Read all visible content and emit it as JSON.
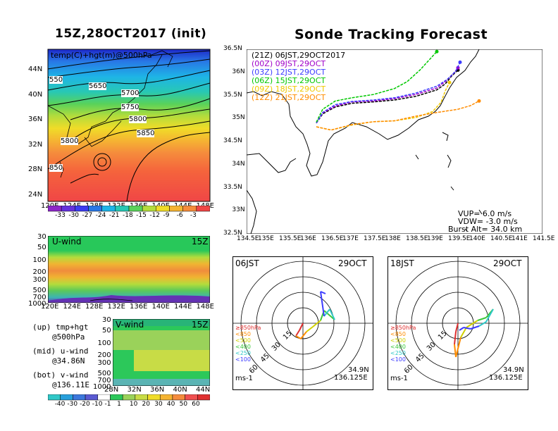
{
  "titles": {
    "left": "15Z,28OCT2017 (init)",
    "right": "Sonde Tracking Forecast"
  },
  "map500": {
    "label": "temp(C)+hgt(m)@500hPa",
    "lat_ticks": [
      "44N",
      "40N",
      "36N",
      "32N",
      "28N",
      "24N"
    ],
    "lon_ticks": [
      "120E",
      "124E",
      "128E",
      "132E",
      "136E",
      "140E",
      "144E",
      "148E"
    ],
    "contours": [
      "550",
      "5650",
      "5700",
      "5750",
      "5800",
      "5850",
      "5800",
      "850"
    ],
    "colorbar": [
      "-33",
      "-30",
      "-27",
      "-24",
      "-21",
      "-18",
      "-15",
      "-12",
      "-9",
      "-6",
      "-3"
    ]
  },
  "uwind": {
    "label": "U-wind",
    "time": "15Z",
    "p_ticks": [
      "30",
      "50",
      "100",
      "200",
      "300",
      "500",
      "700",
      "1000"
    ],
    "lon_ticks": [
      "120E",
      "124E",
      "128E",
      "132E",
      "136E",
      "140E",
      "144E",
      "148E"
    ]
  },
  "vwind": {
    "label": "V-wind",
    "time": "15Z",
    "p_ticks": [
      "30",
      "50",
      "100",
      "200",
      "300",
      "500",
      "700",
      "1000"
    ],
    "lat_ticks": [
      "28N",
      "32N",
      "36N",
      "40N",
      "44N"
    ],
    "colorbar": [
      "-40",
      "-30",
      "-20",
      "-10",
      "-1",
      "1",
      "10",
      "20",
      "30",
      "40",
      "50",
      "60"
    ]
  },
  "notes": [
    {
      "a": "(up) tmp+hgt",
      "b": "@500hPa"
    },
    {
      "a": "(mid) u-wind",
      "b": "@34.86N"
    },
    {
      "a": "(bot) v-wind",
      "b": "@136.11E"
    }
  ],
  "tracking": {
    "legend": [
      {
        "text": "(21Z) 06JST,29OCT2017",
        "color": "#000000"
      },
      {
        "text": "(00Z) 09JST,29OCT",
        "color": "#a000c8"
      },
      {
        "text": "(03Z) 12JST,29OCT",
        "color": "#3c3cff"
      },
      {
        "text": "(06Z) 15JST,29OCT",
        "color": "#00c800"
      },
      {
        "text": "(09Z) 18JST,29OCT",
        "color": "#f0c800"
      },
      {
        "text": "(12Z) 21JST,29OCT",
        "color": "#ff8c00"
      }
    ],
    "lat_ticks": [
      "36.5N",
      "36N",
      "35.5N",
      "35N",
      "34.5N",
      "34N",
      "33.5N",
      "33N",
      "32.5N"
    ],
    "lon_ticks": [
      "134.5E",
      "135E",
      "135.5E",
      "136E",
      "136.5E",
      "137E",
      "137.5E",
      "138E",
      "138.5E",
      "139E",
      "139.5E",
      "140E",
      "140.5E",
      "141E",
      "141.5E"
    ],
    "info": [
      "VUP=  6.0 m/s",
      "VDW= -3.0 m/s",
      "Burst Alt= 34.0 km"
    ]
  },
  "chart_data": [
    {
      "type": "line",
      "title": "Sonde Tracking Forecast",
      "xlim": [
        134.5,
        141.5
      ],
      "ylim": [
        32.5,
        36.5
      ],
      "series": [
        {
          "name": "(21Z) 06JST,29OCT2017",
          "color": "#000000",
          "x": [
            136.15,
            136.3,
            136.6,
            137.0,
            137.5,
            138.0,
            138.5,
            139.0,
            139.2,
            139.35,
            139.5
          ],
          "y": [
            34.9,
            35.1,
            35.25,
            35.33,
            35.36,
            35.4,
            35.48,
            35.62,
            35.75,
            35.92,
            36.05
          ]
        },
        {
          "name": "(00Z) 09JST,29OCT",
          "color": "#a000c8",
          "x": [
            136.15,
            136.3,
            136.6,
            137.0,
            137.5,
            138.0,
            138.5,
            139.0,
            139.2,
            139.4,
            139.5
          ],
          "y": [
            34.9,
            35.12,
            35.27,
            35.36,
            35.38,
            35.43,
            35.52,
            35.66,
            35.8,
            35.98,
            36.1
          ]
        },
        {
          "name": "(03Z) 12JST,29OCT",
          "color": "#3c3cff",
          "x": [
            136.15,
            136.3,
            136.6,
            137.0,
            137.5,
            138.0,
            138.5,
            139.0,
            139.25,
            139.45,
            139.55
          ],
          "y": [
            34.9,
            35.13,
            35.3,
            35.37,
            35.4,
            35.45,
            35.55,
            35.7,
            35.85,
            36.03,
            36.22
          ]
        },
        {
          "name": "(06Z) 15JST,29OCT",
          "color": "#00c800",
          "x": [
            136.15,
            136.3,
            136.6,
            137.0,
            137.5,
            138.0,
            138.3,
            138.6,
            138.85,
            139.0
          ],
          "y": [
            34.92,
            35.2,
            35.38,
            35.45,
            35.52,
            35.65,
            35.8,
            36.05,
            36.3,
            36.45
          ]
        },
        {
          "name": "(09Z) 18JST,29OCT",
          "color": "#f0c800",
          "x": [
            136.15,
            136.5,
            137.0,
            137.5,
            138.0,
            138.5,
            138.9,
            139.1,
            139.2,
            139.3
          ],
          "y": [
            34.82,
            34.75,
            34.86,
            34.93,
            34.95,
            35.02,
            35.15,
            35.35,
            35.6,
            35.78
          ]
        },
        {
          "name": "(12Z) 21JST,29OCT",
          "color": "#ff8c00",
          "x": [
            136.15,
            136.5,
            137.0,
            137.5,
            138.0,
            138.5,
            139.0,
            139.5,
            139.8,
            140.0
          ],
          "y": [
            34.82,
            34.75,
            34.87,
            34.93,
            34.95,
            35.05,
            35.13,
            35.2,
            35.28,
            35.38
          ]
        }
      ]
    }
  ],
  "hodo": [
    {
      "time": "06JST",
      "date": "29OCT",
      "lat": "34.9N",
      "lon": "136.125E",
      "unit": "ms-1",
      "rings": [
        "15",
        "30",
        "45",
        "60"
      ],
      "legend": [
        {
          "text": "≥850hPa",
          "color": "#e03030"
        },
        {
          "text": "<850",
          "color": "#ff8c00"
        },
        {
          "text": "<500",
          "color": "#d0d000"
        },
        {
          "text": "<400",
          "color": "#3cc83c"
        },
        {
          "text": "<250",
          "color": "#30c8c8"
        },
        {
          "text": "<100",
          "color": "#3c3cff"
        }
      ]
    },
    {
      "time": "18JST",
      "date": "29OCT",
      "lat": "34.9N",
      "lon": "136.125E",
      "unit": "ms-1",
      "rings": [
        "15",
        "30",
        "45",
        "60"
      ],
      "legend": [
        {
          "text": "≥850hPa",
          "color": "#e03030"
        },
        {
          "text": "<850",
          "color": "#ff8c00"
        },
        {
          "text": "<500",
          "color": "#d0d000"
        },
        {
          "text": "<400",
          "color": "#3cc83c"
        },
        {
          "text": "<250",
          "color": "#30c8c8"
        },
        {
          "text": "<100",
          "color": "#3c3cff"
        }
      ]
    }
  ]
}
